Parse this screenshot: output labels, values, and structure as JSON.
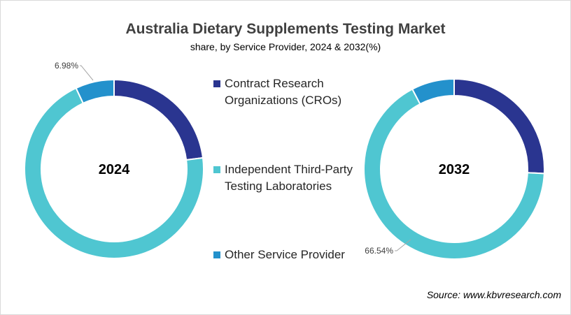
{
  "chart_data": {
    "type": "pie",
    "title": "Australia Dietary Supplements Testing Market",
    "subtitle": "share, by Service Provider, 2024 & 2032(%)",
    "categories": [
      "Contract Research Organizations (CROs)",
      "Independent Third-Party Testing Laboratories",
      "Other Service Provider"
    ],
    "colors": [
      "#2a3590",
      "#4fc6d1",
      "#2391cc"
    ],
    "legend_position": "center",
    "charts": [
      {
        "year": "2024",
        "values": [
          23.0,
          70.02,
          6.98
        ],
        "data_labels": [
          "",
          "",
          "6.98%"
        ]
      },
      {
        "year": "2032",
        "values": [
          25.8,
          66.54,
          7.66
        ],
        "data_labels": [
          "",
          "66.54%",
          ""
        ]
      }
    ]
  },
  "source": "Source: www.kbvresearch.com"
}
